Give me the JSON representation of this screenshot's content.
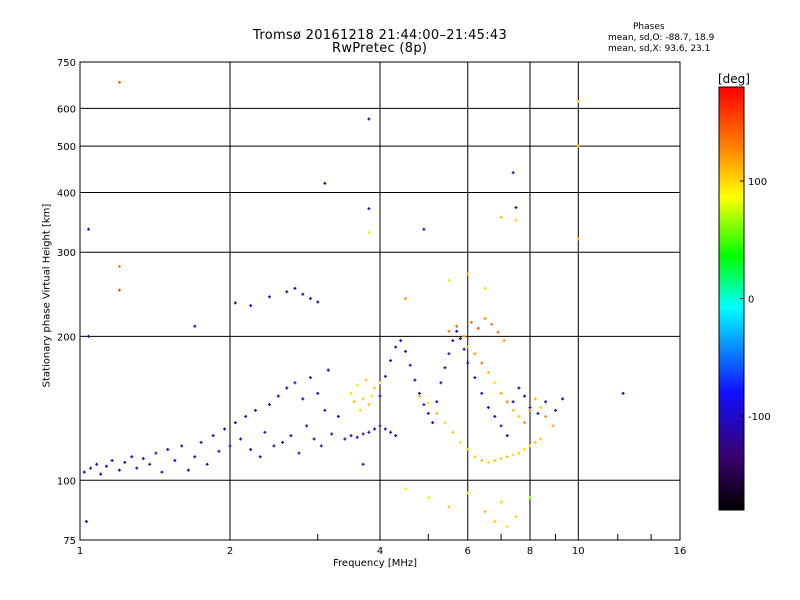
{
  "chart_data": {
    "type": "scatter",
    "title_line1": "Tromsø 20161218 21:44:00–21:45:43",
    "title_line2": "RwPretec (8p)",
    "phases": {
      "heading": "Phases",
      "o_text": "mean, sd,O: -88.7, 18.9",
      "x_text": "mean, sd,X:  93.6, 23.1"
    },
    "xlabel": "Frequency [MHz]",
    "ylabel": "Stationary phase Virtual Height [km]",
    "x_scale": "log",
    "y_scale": "log",
    "xlim": [
      1,
      16
    ],
    "ylim": [
      75,
      750
    ],
    "x_ticks": [
      1,
      2,
      4,
      6,
      8,
      10,
      16
    ],
    "y_ticks": [
      75,
      100,
      200,
      300,
      400,
      500,
      600,
      750
    ],
    "grid": true,
    "colorbar": {
      "label": "[deg]",
      "range": [
        -180,
        180
      ],
      "ticks": [
        100,
        0,
        -100
      ],
      "colors": [
        "#000000",
        "#3a006a",
        "#1010ff",
        "#00ffff",
        "#00ff00",
        "#ffff00",
        "#ff8000",
        "#ff0000"
      ]
    },
    "series": [
      {
        "points": [
          [
            1.02,
            104,
            -110
          ],
          [
            1.05,
            106,
            -120
          ],
          [
            1.08,
            108,
            -105
          ],
          [
            1.1,
            103,
            -115
          ],
          [
            1.13,
            107,
            -90
          ],
          [
            1.16,
            110,
            -100
          ],
          [
            1.2,
            105,
            -112
          ],
          [
            1.23,
            109,
            -118
          ],
          [
            1.27,
            112,
            -95
          ],
          [
            1.3,
            106,
            -108
          ],
          [
            1.34,
            111,
            -102
          ],
          [
            1.38,
            108,
            -125
          ],
          [
            1.42,
            114,
            -98
          ],
          [
            1.46,
            104,
            -110
          ],
          [
            1.5,
            116,
            -100
          ],
          [
            1.55,
            110,
            -92
          ],
          [
            1.6,
            118,
            -115
          ],
          [
            1.65,
            105,
            -108
          ],
          [
            1.7,
            112,
            -88
          ],
          [
            1.75,
            120,
            -104
          ],
          [
            1.8,
            108,
            -120
          ],
          [
            1.85,
            124,
            -96
          ],
          [
            1.9,
            115,
            -110
          ],
          [
            1.95,
            128,
            -100
          ],
          [
            2.0,
            118,
            -106
          ],
          [
            2.05,
            132,
            -112
          ],
          [
            2.1,
            122,
            -94
          ],
          [
            2.15,
            136,
            -100
          ],
          [
            2.2,
            116,
            -118
          ],
          [
            2.25,
            140,
            -102
          ],
          [
            2.3,
            112,
            -110
          ],
          [
            2.35,
            126,
            -96
          ],
          [
            2.4,
            144,
            -108
          ],
          [
            2.45,
            118,
            -114
          ],
          [
            2.5,
            150,
            -100
          ],
          [
            2.55,
            120,
            -92
          ],
          [
            2.6,
            156,
            -106
          ],
          [
            2.65,
            124,
            -112
          ],
          [
            2.7,
            160,
            -98
          ],
          [
            2.75,
            114,
            -104
          ],
          [
            2.8,
            148,
            -116
          ],
          [
            2.85,
            130,
            -100
          ],
          [
            2.9,
            164,
            -95
          ],
          [
            2.95,
            122,
            -108
          ],
          [
            3.0,
            152,
            -112
          ],
          [
            3.05,
            118,
            -102
          ],
          [
            3.1,
            140,
            -96
          ],
          [
            3.15,
            170,
            -110
          ],
          [
            3.2,
            125,
            -104
          ],
          [
            3.3,
            136,
            -100
          ],
          [
            2.6,
            248,
            -110
          ],
          [
            2.7,
            252,
            -105
          ],
          [
            2.8,
            245,
            -115
          ],
          [
            2.9,
            240,
            -100
          ],
          [
            3.0,
            236,
            -108
          ],
          [
            2.4,
            242,
            -112
          ],
          [
            2.2,
            232,
            -100
          ],
          [
            2.05,
            235,
            -106
          ],
          [
            3.4,
            122,
            -100
          ],
          [
            3.5,
            124,
            -108
          ],
          [
            3.6,
            123,
            -96
          ],
          [
            3.7,
            125,
            -104
          ],
          [
            3.8,
            126,
            -110
          ],
          [
            3.9,
            128,
            -100
          ],
          [
            4.0,
            130,
            -106
          ],
          [
            4.1,
            128,
            -98
          ],
          [
            4.2,
            126,
            -112
          ],
          [
            4.3,
            124,
            -104
          ],
          [
            4.0,
            150,
            -105
          ],
          [
            4.1,
            165,
            -98
          ],
          [
            4.2,
            178,
            -110
          ],
          [
            4.3,
            190,
            -100
          ],
          [
            4.4,
            196,
            -104
          ],
          [
            4.5,
            186,
            -112
          ],
          [
            4.6,
            174,
            -96
          ],
          [
            4.7,
            162,
            -106
          ],
          [
            4.8,
            152,
            -100
          ],
          [
            4.9,
            144,
            -108
          ],
          [
            5.0,
            138,
            -98
          ],
          [
            5.1,
            132,
            -110
          ],
          [
            5.2,
            146,
            -100
          ],
          [
            5.3,
            160,
            -104
          ],
          [
            5.4,
            172,
            -112
          ],
          [
            5.5,
            184,
            -96
          ],
          [
            5.6,
            196,
            -102
          ],
          [
            5.7,
            205,
            -108
          ],
          [
            5.8,
            198,
            -100
          ],
          [
            5.9,
            188,
            -96
          ],
          [
            6.0,
            176,
            -104
          ],
          [
            6.2,
            164,
            -112
          ],
          [
            6.4,
            152,
            -100
          ],
          [
            6.6,
            142,
            -96
          ],
          [
            6.8,
            136,
            -106
          ],
          [
            7.0,
            130,
            -100
          ],
          [
            7.2,
            124,
            -108
          ],
          [
            7.4,
            146,
            -104
          ],
          [
            7.6,
            156,
            -110
          ],
          [
            7.8,
            150,
            -96
          ],
          [
            8.0,
            142,
            -100
          ],
          [
            8.3,
            138,
            -104
          ],
          [
            8.6,
            146,
            -108
          ],
          [
            9.0,
            140,
            -100
          ],
          [
            9.3,
            148,
            -112
          ],
          [
            3.7,
            108,
            -100
          ],
          [
            1.03,
            82,
            -112
          ],
          [
            1.04,
            335,
            -105
          ],
          [
            1.04,
            200,
            -110
          ],
          [
            1.7,
            210,
            -100
          ],
          [
            3.8,
            570,
            -110
          ],
          [
            3.1,
            418,
            -106
          ],
          [
            3.8,
            370,
            -100
          ],
          [
            4.9,
            335,
            -110
          ],
          [
            7.4,
            440,
            -108
          ],
          [
            7.5,
            372,
            -104
          ],
          [
            12.3,
            152,
            -110
          ]
        ]
      },
      {
        "points": [
          [
            3.5,
            152,
            100
          ],
          [
            3.6,
            158,
            96
          ],
          [
            3.7,
            148,
            104
          ],
          [
            3.8,
            144,
            108
          ],
          [
            3.9,
            156,
            100
          ],
          [
            4.0,
            160,
            92
          ],
          [
            3.65,
            140,
            98
          ],
          [
            3.75,
            162,
            104
          ],
          [
            3.55,
            146,
            110
          ],
          [
            3.85,
            150,
            96
          ],
          [
            4.8,
            150,
            104
          ],
          [
            5.0,
            145,
            98
          ],
          [
            5.2,
            138,
            110
          ],
          [
            5.4,
            132,
            100
          ],
          [
            5.6,
            126,
            106
          ],
          [
            5.8,
            120,
            96
          ],
          [
            6.0,
            116,
            104
          ],
          [
            6.2,
            112,
            100
          ],
          [
            6.4,
            110,
            108
          ],
          [
            6.6,
            109,
            96
          ],
          [
            6.8,
            110,
            104
          ],
          [
            7.0,
            111,
            100
          ],
          [
            7.2,
            112,
            110
          ],
          [
            7.4,
            113,
            98
          ],
          [
            7.6,
            114,
            104
          ],
          [
            7.8,
            116,
            96
          ],
          [
            8.0,
            118,
            100
          ],
          [
            8.2,
            120,
            108
          ],
          [
            8.4,
            122,
            104
          ],
          [
            5.5,
            205,
            130
          ],
          [
            5.7,
            210,
            140
          ],
          [
            5.9,
            200,
            120
          ],
          [
            6.1,
            214,
            135
          ],
          [
            6.3,
            208,
            145
          ],
          [
            6.5,
            218,
            125
          ],
          [
            6.7,
            212,
            138
          ],
          [
            6.9,
            204,
            130
          ],
          [
            7.1,
            196,
            118
          ],
          [
            6.0,
            190,
            110
          ],
          [
            6.2,
            184,
            120
          ],
          [
            6.4,
            176,
            130
          ],
          [
            6.6,
            168,
            110
          ],
          [
            6.8,
            160,
            100
          ],
          [
            7.0,
            152,
            120
          ],
          [
            7.2,
            146,
            130
          ],
          [
            7.4,
            140,
            110
          ],
          [
            7.6,
            136,
            100
          ],
          [
            7.8,
            132,
            120
          ],
          [
            8.0,
            140,
            130
          ],
          [
            8.2,
            148,
            110
          ],
          [
            8.4,
            142,
            100
          ],
          [
            8.6,
            136,
            124
          ],
          [
            8.9,
            130,
            116
          ],
          [
            4.5,
            96,
            90
          ],
          [
            5.0,
            92,
            80
          ],
          [
            5.5,
            88,
            104
          ],
          [
            6.0,
            94,
            96
          ],
          [
            6.5,
            86,
            110
          ],
          [
            7.0,
            90,
            70
          ],
          [
            7.5,
            84,
            100
          ],
          [
            8.0,
            92,
            60
          ],
          [
            7.2,
            80,
            96
          ],
          [
            6.8,
            82,
            104
          ],
          [
            1.2,
            680,
            140
          ],
          [
            1.2,
            280,
            130
          ],
          [
            1.2,
            250,
            150
          ],
          [
            10.0,
            620,
            96
          ],
          [
            10.0,
            500,
            104
          ],
          [
            10.0,
            320,
            100
          ],
          [
            3.8,
            330,
            96
          ],
          [
            7.5,
            350,
            104
          ],
          [
            6.0,
            270,
            110
          ],
          [
            5.5,
            262,
            100
          ],
          [
            4.5,
            240,
            120
          ],
          [
            6.5,
            252,
            100
          ],
          [
            7.0,
            355,
            110
          ]
        ]
      }
    ]
  }
}
